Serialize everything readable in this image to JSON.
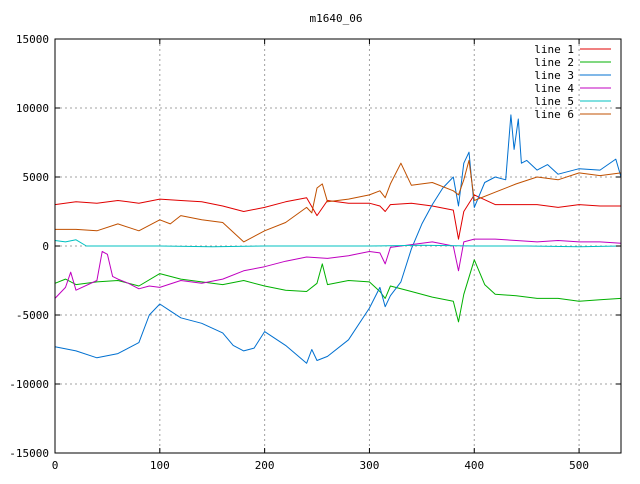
{
  "chart_data": {
    "type": "line",
    "title": "m1640_06",
    "xlabel": "",
    "ylabel": "",
    "xlim": [
      0,
      540
    ],
    "ylim": [
      -15000,
      15000
    ],
    "xticks": [
      0,
      100,
      200,
      300,
      400,
      500
    ],
    "yticks": [
      -15000,
      -10000,
      -5000,
      0,
      5000,
      10000,
      15000
    ],
    "grid": true,
    "legend_position": "top-right",
    "series": [
      {
        "name": "line 1",
        "color": "#e00000",
        "x": [
          0,
          20,
          40,
          60,
          80,
          100,
          120,
          140,
          160,
          180,
          200,
          220,
          240,
          250,
          260,
          280,
          300,
          310,
          315,
          320,
          340,
          360,
          380,
          385,
          390,
          400,
          420,
          440,
          460,
          480,
          500,
          520,
          540
        ],
        "y": [
          3000,
          3200,
          3100,
          3300,
          3100,
          3400,
          3300,
          3200,
          2900,
          2500,
          2800,
          3200,
          3500,
          2200,
          3300,
          3100,
          3100,
          2900,
          2500,
          3000,
          3100,
          2900,
          2600,
          500,
          2500,
          3700,
          3000,
          3000,
          3000,
          2800,
          3000,
          2900,
          2900
        ]
      },
      {
        "name": "line 2",
        "color": "#00b000",
        "x": [
          0,
          10,
          20,
          40,
          60,
          80,
          100,
          120,
          140,
          160,
          180,
          200,
          220,
          240,
          250,
          255,
          260,
          280,
          300,
          310,
          315,
          320,
          340,
          360,
          380,
          385,
          390,
          400,
          410,
          420,
          440,
          460,
          480,
          500,
          520,
          540
        ],
        "y": [
          -2700,
          -2400,
          -2800,
          -2600,
          -2500,
          -2900,
          -2000,
          -2400,
          -2600,
          -2800,
          -2500,
          -2900,
          -3200,
          -3300,
          -2700,
          -1300,
          -2800,
          -2500,
          -2600,
          -3300,
          -3800,
          -2900,
          -3300,
          -3700,
          -4000,
          -5500,
          -3500,
          -1000,
          -2800,
          -3500,
          -3600,
          -3800,
          -3800,
          -4000,
          -3900,
          -3800
        ]
      },
      {
        "name": "line 3",
        "color": "#0070d0",
        "x": [
          0,
          20,
          40,
          60,
          80,
          90,
          100,
          110,
          120,
          140,
          160,
          170,
          180,
          190,
          200,
          220,
          240,
          245,
          250,
          260,
          280,
          300,
          310,
          315,
          320,
          330,
          340,
          350,
          360,
          370,
          380,
          385,
          390,
          395,
          400,
          410,
          420,
          430,
          435,
          438,
          442,
          445,
          450,
          460,
          470,
          480,
          500,
          520,
          535,
          540
        ],
        "y": [
          -7300,
          -7600,
          -8100,
          -7800,
          -7000,
          -5000,
          -4200,
          -4700,
          -5200,
          -5600,
          -6300,
          -7200,
          -7600,
          -7400,
          -6200,
          -7200,
          -8500,
          -7500,
          -8300,
          -8000,
          -6800,
          -4500,
          -3000,
          -4400,
          -3600,
          -2600,
          -200,
          1600,
          3000,
          4200,
          5000,
          2900,
          6000,
          6800,
          2800,
          4600,
          5000,
          4800,
          9500,
          7000,
          9200,
          6000,
          6200,
          5500,
          5900,
          5200,
          5600,
          5500,
          6300,
          5000
        ]
      },
      {
        "name": "line 4",
        "color": "#c000c0",
        "x": [
          0,
          10,
          15,
          20,
          40,
          45,
          50,
          55,
          60,
          70,
          80,
          90,
          100,
          120,
          140,
          160,
          180,
          200,
          220,
          240,
          260,
          280,
          300,
          310,
          315,
          320,
          340,
          360,
          380,
          385,
          390,
          400,
          420,
          440,
          460,
          480,
          500,
          520,
          540
        ],
        "y": [
          -3800,
          -3000,
          -1900,
          -3200,
          -2500,
          -400,
          -600,
          -2200,
          -2400,
          -2700,
          -3100,
          -2900,
          -3000,
          -2500,
          -2700,
          -2400,
          -1800,
          -1500,
          -1100,
          -800,
          -900,
          -700,
          -400,
          -500,
          -1300,
          -100,
          100,
          300,
          0,
          -1800,
          300,
          500,
          500,
          400,
          300,
          400,
          300,
          300,
          200
        ]
      },
      {
        "name": "line 5",
        "color": "#00c0c0",
        "x": [
          0,
          10,
          20,
          30,
          60,
          100,
          150,
          200,
          250,
          300,
          350,
          400,
          450,
          500,
          540
        ],
        "y": [
          400,
          300,
          450,
          0,
          0,
          0,
          -50,
          0,
          0,
          0,
          50,
          0,
          0,
          -50,
          0
        ]
      },
      {
        "name": "line 6",
        "color": "#c05000",
        "x": [
          0,
          20,
          40,
          60,
          80,
          100,
          110,
          120,
          140,
          160,
          180,
          200,
          220,
          240,
          245,
          250,
          255,
          260,
          280,
          300,
          310,
          315,
          320,
          330,
          340,
          360,
          380,
          385,
          390,
          395,
          400,
          420,
          440,
          460,
          480,
          500,
          520,
          540
        ],
        "y": [
          1200,
          1200,
          1100,
          1600,
          1100,
          1900,
          1600,
          2200,
          1900,
          1700,
          300,
          1100,
          1700,
          2800,
          2400,
          4200,
          4500,
          3200,
          3400,
          3700,
          4000,
          3500,
          4500,
          6000,
          4400,
          4600,
          4000,
          3700,
          4800,
          6200,
          3300,
          3900,
          4500,
          5000,
          4800,
          5300,
          5100,
          5300
        ]
      }
    ]
  }
}
